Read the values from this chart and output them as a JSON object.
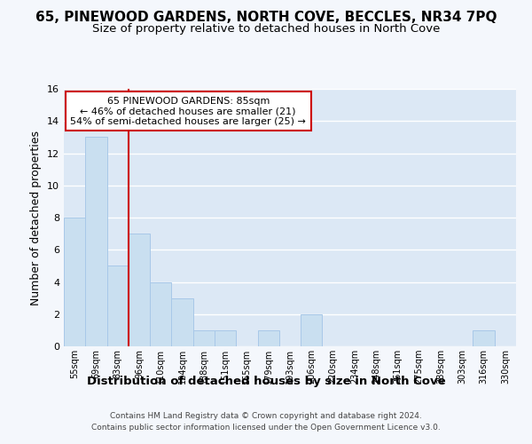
{
  "title": "65, PINEWOOD GARDENS, NORTH COVE, BECCLES, NR34 7PQ",
  "subtitle": "Size of property relative to detached houses in North Cove",
  "xlabel": "Distribution of detached houses by size in North Cove",
  "ylabel": "Number of detached properties",
  "footer_line1": "Contains HM Land Registry data © Crown copyright and database right 2024.",
  "footer_line2": "Contains public sector information licensed under the Open Government Licence v3.0.",
  "bin_labels": [
    "55sqm",
    "69sqm",
    "83sqm",
    "96sqm",
    "110sqm",
    "124sqm",
    "138sqm",
    "151sqm",
    "165sqm",
    "179sqm",
    "193sqm",
    "206sqm",
    "220sqm",
    "234sqm",
    "248sqm",
    "261sqm",
    "275sqm",
    "289sqm",
    "303sqm",
    "316sqm",
    "330sqm"
  ],
  "bar_heights": [
    8,
    13,
    5,
    7,
    4,
    3,
    1,
    1,
    0,
    1,
    0,
    2,
    0,
    0,
    0,
    0,
    0,
    0,
    0,
    1,
    0
  ],
  "bar_color": "#c9dff0",
  "bar_edge_color": "#a8c8e8",
  "red_line_x": 2.5,
  "annotation_text": "65 PINEWOOD GARDENS: 85sqm\n← 46% of detached houses are smaller (21)\n54% of semi-detached houses are larger (25) →",
  "annotation_box_color": "#ffffff",
  "annotation_box_edge": "#cc0000",
  "red_line_color": "#cc0000",
  "ylim": [
    0,
    16
  ],
  "yticks": [
    0,
    2,
    4,
    6,
    8,
    10,
    12,
    14,
    16
  ],
  "fig_bg_color": "#f4f7fc",
  "plot_bg_color": "#dce8f5",
  "title_fontsize": 11,
  "subtitle_fontsize": 9.5,
  "ylabel_fontsize": 9,
  "xlabel_fontsize": 9.5,
  "footer_fontsize": 6.5
}
